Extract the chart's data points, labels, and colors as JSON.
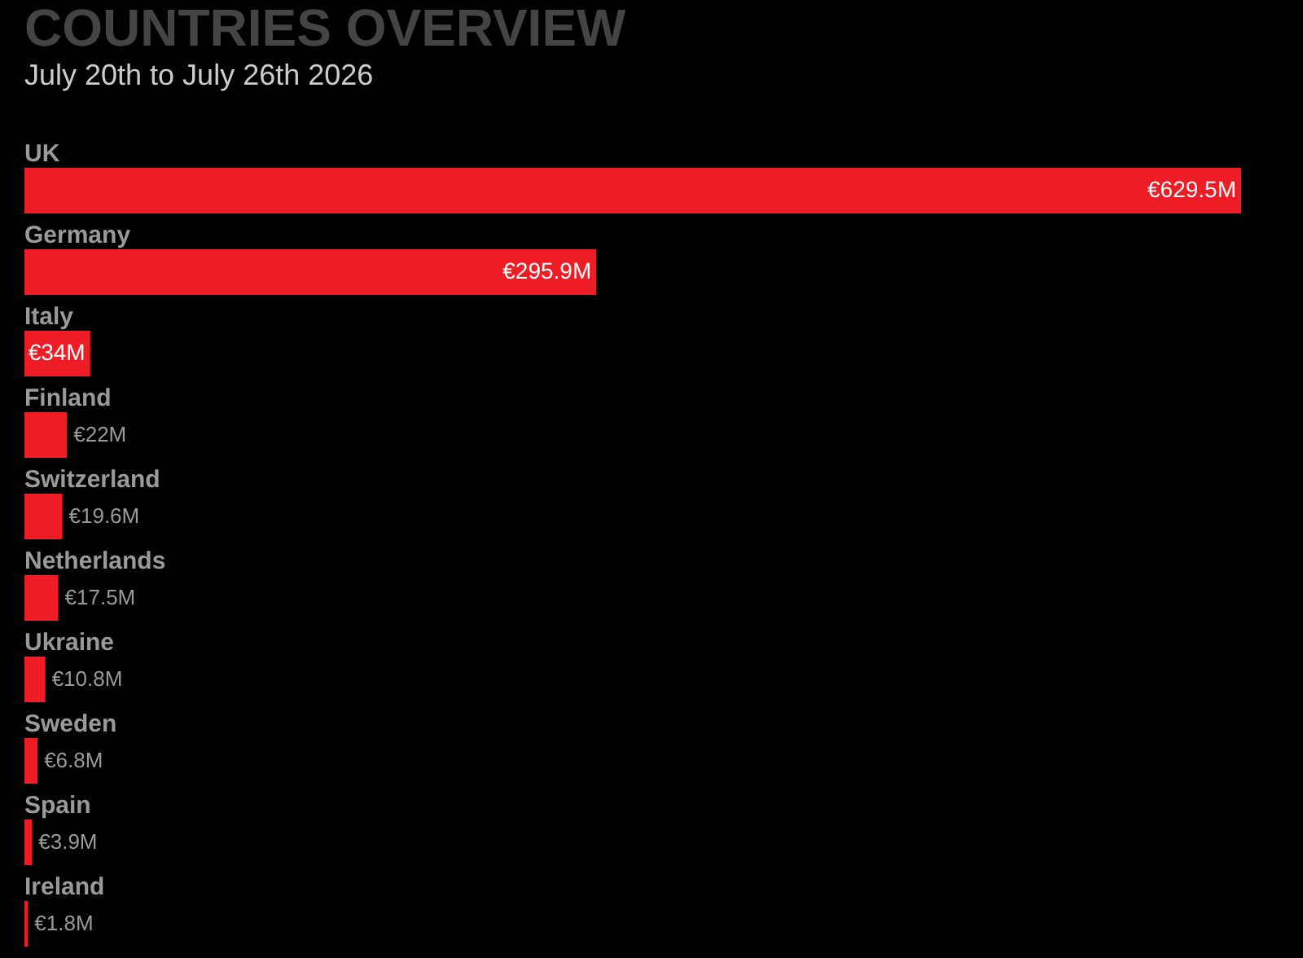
{
  "chart_data": {
    "type": "bar",
    "orientation": "horizontal",
    "title": "COUNTRIES OVERVIEW",
    "subtitle": "July 20th to July 26th 2026",
    "categories": [
      "UK",
      "Germany",
      "Italy",
      "Finland",
      "Switzerland",
      "Netherlands",
      "Ukraine",
      "Sweden",
      "Spain",
      "Ireland"
    ],
    "values": [
      629.5,
      295.9,
      34,
      22,
      19.6,
      17.5,
      10.8,
      6.8,
      3.9,
      1.8
    ],
    "value_labels": [
      "€629.5M",
      "€295.9M",
      "€34M",
      "€22M",
      "€19.6M",
      "€17.5M",
      "€10.8M",
      "€6.8M",
      "€3.9M",
      "€1.8M"
    ],
    "color": "#ee1c25"
  }
}
